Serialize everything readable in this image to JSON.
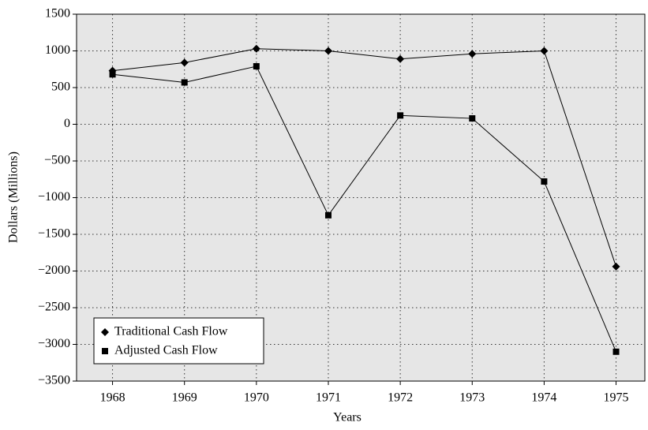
{
  "chart_data": {
    "type": "line",
    "x_label": "Years",
    "y_label": "Dollars (Millions)",
    "x": [
      1968,
      1969,
      1970,
      1971,
      1972,
      1973,
      1974,
      1975
    ],
    "xlim": [
      1967.5,
      1975.4
    ],
    "xticks": [
      1968,
      1969,
      1970,
      1971,
      1972,
      1973,
      1974,
      1975
    ],
    "ylim": [
      -3500,
      1500
    ],
    "yticks": [
      1500,
      1000,
      500,
      0,
      {
        "value": -500,
        "label": "−500"
      },
      {
        "value": -1000,
        "label": "−1000"
      },
      {
        "value": -1500,
        "label": "−1500"
      },
      {
        "value": -2000,
        "label": "−2000"
      },
      {
        "value": -2500,
        "label": "−2500"
      },
      {
        "value": -3000,
        "label": "−3000"
      },
      {
        "value": -3500,
        "label": "−3500"
      }
    ],
    "grid": true,
    "legend": "lower left",
    "series": [
      {
        "name": "Traditional Cash Flow",
        "color": "#000000",
        "marker": "diamond",
        "values": [
          730,
          840,
          1030,
          1000,
          890,
          960,
          1000,
          -1940
        ]
      },
      {
        "name": "Adjusted Cash Flow",
        "color": "#000000",
        "marker": "square",
        "values": [
          680,
          570,
          790,
          -1240,
          120,
          80,
          -780,
          -3100
        ]
      }
    ]
  }
}
